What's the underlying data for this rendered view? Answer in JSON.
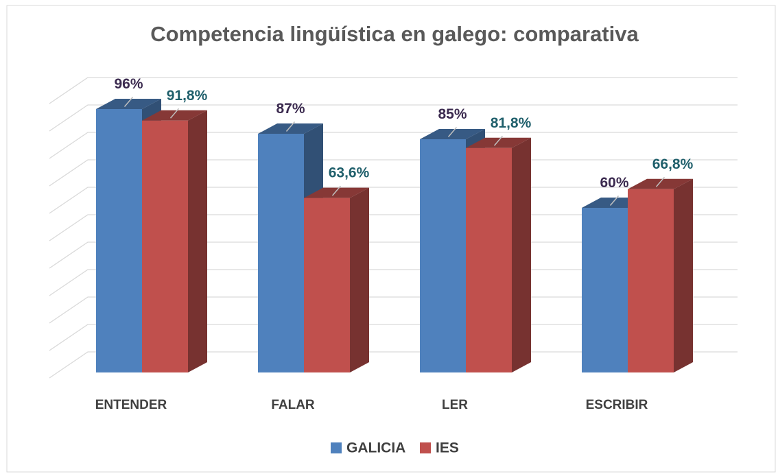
{
  "chart_data": {
    "type": "bar3d",
    "title": "Competencia lingüística en galego: comparativa",
    "categories": [
      "ENTENDER",
      "FALAR",
      "LER",
      "ESCRIBIR"
    ],
    "series": [
      {
        "name": "GALICIA",
        "color": "#4f81bd",
        "values": [
          96,
          87,
          85,
          60
        ],
        "value_labels": [
          "96%",
          "87%",
          "85%",
          "60%"
        ]
      },
      {
        "name": "IES",
        "color": "#c0504d",
        "values": [
          91.8,
          63.6,
          81.8,
          66.8
        ],
        "value_labels": [
          "91,8%",
          "63,6%",
          "81,8%",
          "66,8%"
        ]
      }
    ],
    "ylim": [
      0,
      100
    ],
    "yticks": [
      0,
      10,
      20,
      30,
      40,
      50,
      60,
      70,
      80,
      90,
      100
    ],
    "grid": true,
    "legend": "bottom"
  }
}
